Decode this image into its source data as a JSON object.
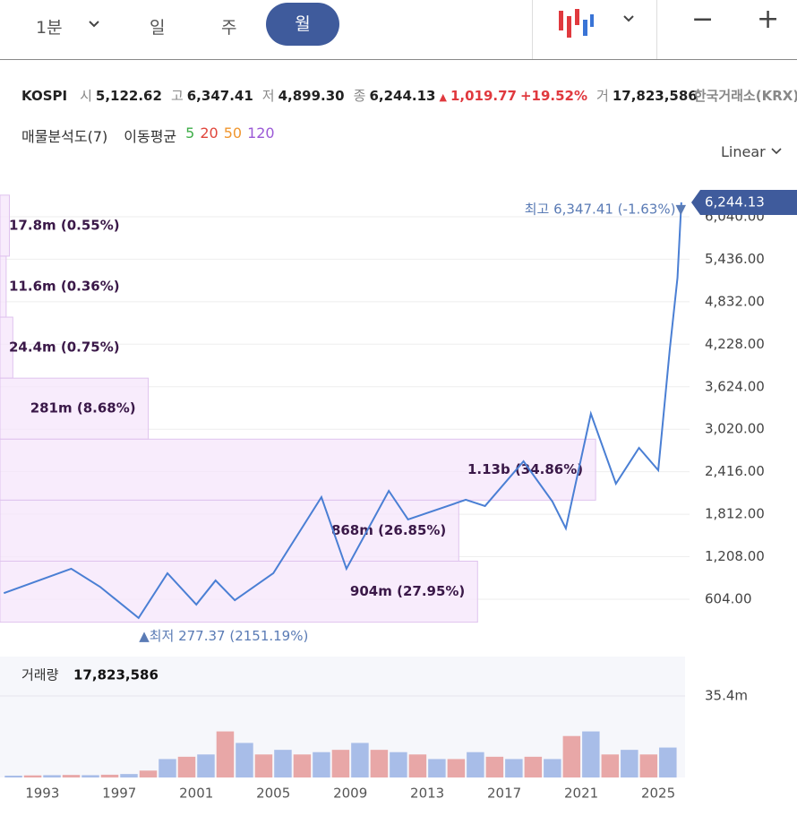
{
  "toolbar": {
    "intervals": [
      "1분",
      "일",
      "주",
      "월"
    ],
    "selected_index": 3,
    "zoom_out": "−",
    "zoom_in": "+"
  },
  "quote": {
    "symbol": "KOSPI",
    "open_label": "시",
    "open": "5,122.62",
    "high_label": "고",
    "high": "6,347.41",
    "low_label": "저",
    "low": "4,899.30",
    "close_label": "종",
    "close": "6,244.13",
    "change_arrow": "▲",
    "change": "1,019.77",
    "change_pct": "+19.52%",
    "volume_label": "거",
    "volume": "17,823,586",
    "exchange": "한국거래소(KRX)"
  },
  "indicators": {
    "profile": "매물분석도(7)",
    "ma_label": "이동평균",
    "ma_periods": [
      {
        "label": "5",
        "color": "#3fae49"
      },
      {
        "label": "20",
        "color": "#e0463c"
      },
      {
        "label": "50",
        "color": "#f0962e"
      },
      {
        "label": "120",
        "color": "#9b59d6"
      }
    ]
  },
  "scale": "Linear",
  "chart_data": [
    {
      "type": "line",
      "color": "#4a7fd4",
      "x": [
        1991,
        1994.5,
        1996,
        1998,
        1999.5,
        2001,
        2002,
        2003,
        2005,
        2007.5,
        2008.8,
        2011,
        2012,
        2015,
        2016,
        2018,
        2019.5,
        2020.2,
        2021.5,
        2022.8,
        2024,
        2025,
        2025.6,
        2026,
        2026.2
      ],
      "values": [
        690,
        1037,
        780,
        337,
        973,
        528,
        870,
        590,
        973,
        2055,
        1037,
        2144,
        1737,
        2017,
        1928,
        2564,
        1992,
        1610,
        3240,
        2246,
        2755,
        2437,
        4156,
        5174,
        6244.13
      ],
      "xlim": [
        1990.8,
        2026.3
      ],
      "ylim": [
        0,
        6600
      ],
      "yticks": [
        {
          "value": 604,
          "label": "604.00"
        },
        {
          "value": 1208,
          "label": "1,208.00"
        },
        {
          "value": 1812,
          "label": "1,812.00"
        },
        {
          "value": 2416,
          "label": "2,416.00"
        },
        {
          "value": 3020,
          "label": "3,020.00"
        },
        {
          "value": 3624,
          "label": "3,624.00"
        },
        {
          "value": 4228,
          "label": "4,228.00"
        },
        {
          "value": 4832,
          "label": "4,832.00"
        },
        {
          "value": 5436,
          "label": "5,436.00"
        },
        {
          "value": 6040,
          "label": "6,040.00"
        }
      ],
      "grid": true,
      "last_price": {
        "value": 6244.13,
        "label": "6,244.13"
      },
      "high_annotation": {
        "value": 6347.41,
        "label": "최고 6,347.41 (-1.63%)▼"
      },
      "low_annotation": {
        "value": 277.37,
        "x": 1998.3,
        "label": "▲최저 277.37 (2151.19%)"
      },
      "volume_profile": [
        {
          "label": "17.8m (0.55%)",
          "percent": 0.55
        },
        {
          "label": "11.6m (0.36%)",
          "percent": 0.36
        },
        {
          "label": "24.4m (0.75%)",
          "percent": 0.75
        },
        {
          "label": "281m (8.68%)",
          "percent": 8.68
        },
        {
          "label": "1.13b (34.86%)",
          "percent": 34.86
        },
        {
          "label": "868m (26.85%)",
          "percent": 26.85
        },
        {
          "label": "904m (27.95%)",
          "percent": 27.95
        }
      ]
    },
    {
      "type": "bar",
      "title": "거래량",
      "last": "17,823,586",
      "color": "#a8bde8",
      "x": [
        1991,
        1992,
        1993,
        1994,
        1995,
        1996,
        1997,
        1998,
        1999,
        2000,
        2001,
        2002,
        2003,
        2004,
        2005,
        2006,
        2007,
        2008,
        2009,
        2010,
        2011,
        2012,
        2013,
        2014,
        2015,
        2016,
        2017,
        2018,
        2019,
        2020,
        2021,
        2022,
        2023,
        2024,
        2025
      ],
      "values": [
        800000,
        900000,
        1000000,
        1100000,
        1000000,
        1200000,
        1500000,
        3000000,
        8000000,
        9000000,
        10000000,
        20000000,
        15000000,
        10000000,
        12000000,
        10000000,
        11000000,
        12000000,
        15000000,
        12000000,
        11000000,
        10000000,
        8000000,
        8000000,
        11000000,
        9000000,
        8000000,
        9000000,
        8000000,
        18000000,
        20000000,
        10000000,
        12000000,
        10000000,
        13000000
      ],
      "xlim": [
        1990.8,
        2026.3
      ],
      "ylim": [
        0,
        52500000
      ],
      "yticks": [
        {
          "value": 35400000,
          "label": "35.4m"
        }
      ],
      "xticks": [
        1993,
        1997,
        2001,
        2005,
        2009,
        2013,
        2017,
        2021,
        2025
      ]
    }
  ]
}
